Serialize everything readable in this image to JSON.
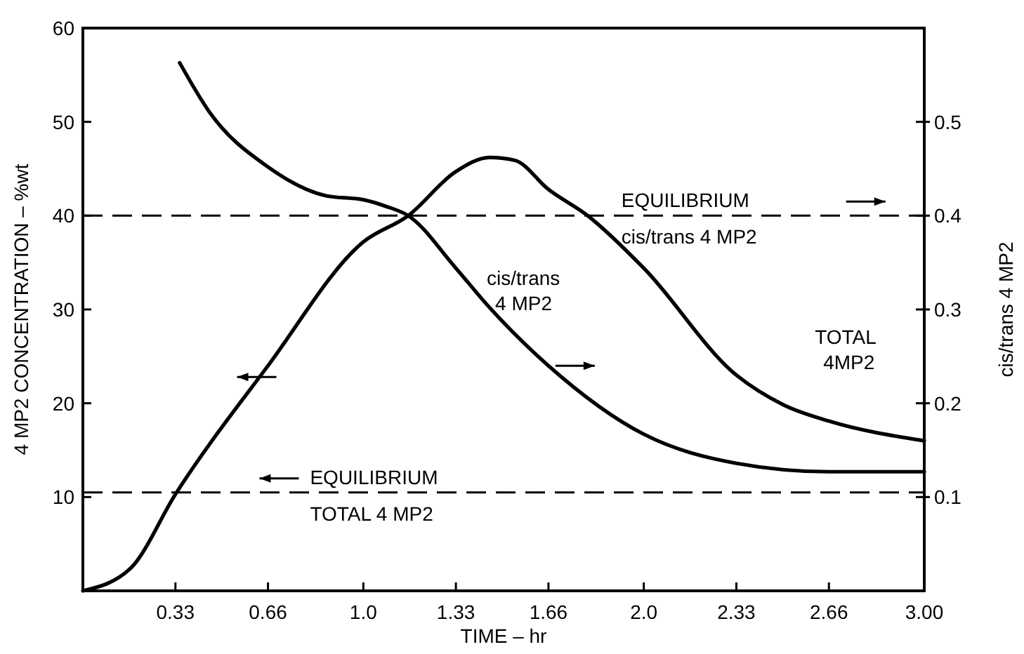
{
  "chart_data": {
    "type": "line",
    "xlabel": "TIME – hr",
    "ylabel": "4 MP2 CONCENTRATION – %wt",
    "y2label": "cis/trans 4 MP2",
    "xlim": [
      0,
      3
    ],
    "xticks": [
      0.33,
      0.66,
      {
        "value": 1,
        "label": "1.0"
      },
      1.33,
      1.66,
      {
        "value": 2,
        "label": "2.0"
      },
      2.33,
      2.66,
      {
        "value": 3,
        "label": "3.00"
      }
    ],
    "ylim": [
      0,
      60
    ],
    "yticks": [
      10,
      20,
      30,
      40,
      50,
      60
    ],
    "y2lim": [
      0,
      0.6
    ],
    "y2ticks": [
      0.1,
      0.2,
      0.3,
      0.4,
      0.5
    ],
    "series": [
      {
        "name": "TOTAL\n4MP2",
        "color": "#000000",
        "x": [
          0,
          0.17,
          0.33,
          0.66,
          1.0,
          1.16,
          1.33,
          1.45,
          1.54,
          1.66,
          1.8,
          2.0,
          2.33,
          2.5,
          2.66,
          3.0
        ],
        "values": [
          0,
          2.4,
          10.3,
          24,
          37.2,
          40,
          44.7,
          46.2,
          45.9,
          42.8,
          40,
          34.4,
          23,
          19.8,
          18.1,
          16
        ]
      },
      {
        "name": "cis/trans\n4 MP2",
        "color": "#000000",
        "axis": "y2",
        "x": [
          0.345,
          0.45,
          0.66,
          0.87,
          1.0,
          1.08,
          1.16,
          1.33,
          1.45,
          1.66,
          2.0,
          2.33,
          2.66,
          3.0
        ],
        "values": [
          0.563,
          0.511,
          0.452,
          0.421,
          0.417,
          0.41,
          0.4,
          0.344,
          0.302,
          0.24,
          0.167,
          0.136,
          0.127,
          0.127
        ]
      }
    ],
    "ref_lines": [
      {
        "axis": "y2",
        "value": 0.4,
        "label": "EQUILIBRIUM\ncis/trans 4 MP2",
        "color": "#000000",
        "line_style": "dashed"
      },
      {
        "axis": "y",
        "value": 10.5,
        "label": "EQUILIBRIUM\nTOTAL 4 MP2",
        "color": "#000000",
        "line_style": "dashed"
      }
    ],
    "grid": false,
    "line_style": "solid"
  }
}
